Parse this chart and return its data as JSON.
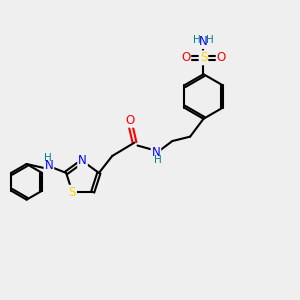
{
  "background_color": "#efefef",
  "atom_colors": {
    "C": "#000000",
    "N": "#0000FF",
    "O": "#FF0000",
    "S": "#FFD700",
    "H": "#008080"
  },
  "bond_color": "#000000",
  "figure_size": [
    3.0,
    3.0
  ],
  "dpi": 100,
  "xlim": [
    0,
    10
  ],
  "ylim": [
    0,
    10
  ]
}
